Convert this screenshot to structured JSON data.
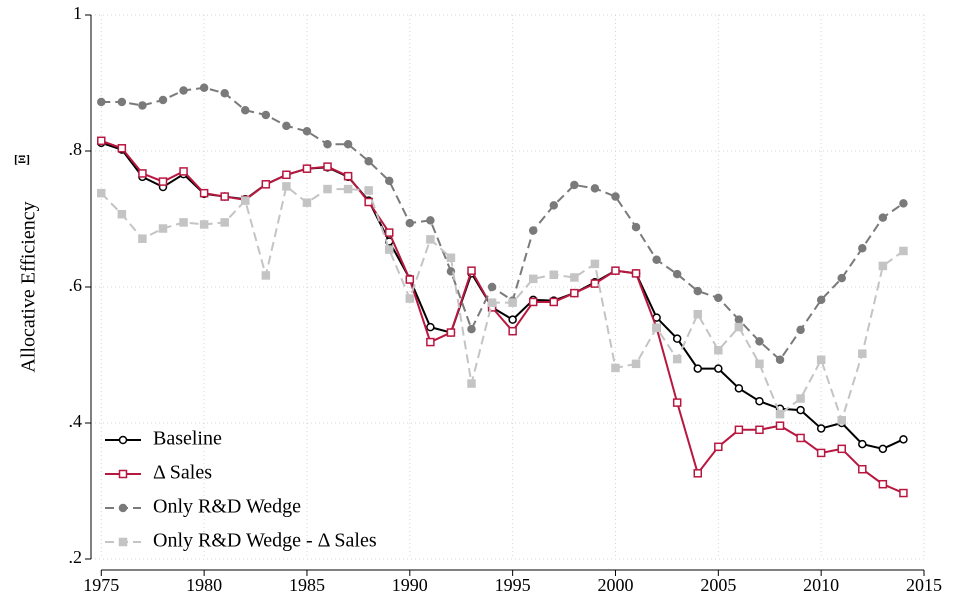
{
  "chart_data": {
    "type": "line",
    "ylabel": "Allocative Efficiency",
    "ylabel_symbol": "[Ξ]",
    "x": [
      1975,
      1976,
      1977,
      1978,
      1979,
      1980,
      1981,
      1982,
      1983,
      1984,
      1985,
      1986,
      1987,
      1988,
      1989,
      1990,
      1991,
      1992,
      1993,
      1994,
      1995,
      1996,
      1997,
      1998,
      1999,
      2000,
      2001,
      2002,
      2003,
      2004,
      2005,
      2006,
      2007,
      2008,
      2009,
      2010,
      2011,
      2012,
      2013,
      2014
    ],
    "series": [
      {
        "name": "Baseline",
        "color": "#000000",
        "marker": "hollow-circle",
        "dash": false,
        "values": [
          0.812,
          0.802,
          0.762,
          0.747,
          0.766,
          0.737,
          0.733,
          0.729,
          0.751,
          0.765,
          0.774,
          0.776,
          0.762,
          0.727,
          0.667,
          0.612,
          0.541,
          0.533,
          0.62,
          0.57,
          0.552,
          0.581,
          0.58,
          0.591,
          0.607,
          0.624,
          0.62,
          0.555,
          0.524,
          0.48,
          0.48,
          0.451,
          0.432,
          0.421,
          0.419,
          0.392,
          0.4,
          0.369,
          0.362,
          0.376
        ]
      },
      {
        "name": "Δ Sales",
        "color": "#b8173f",
        "marker": "hollow-square",
        "dash": false,
        "values": [
          0.815,
          0.804,
          0.767,
          0.755,
          0.77,
          0.738,
          0.733,
          0.728,
          0.751,
          0.765,
          0.774,
          0.777,
          0.763,
          0.725,
          0.68,
          0.611,
          0.519,
          0.533,
          0.624,
          0.57,
          0.535,
          0.578,
          0.578,
          0.591,
          0.605,
          0.624,
          0.62,
          0.54,
          0.43,
          0.326,
          0.365,
          0.39,
          0.39,
          0.396,
          0.378,
          0.356,
          0.362,
          0.332,
          0.31,
          0.297
        ]
      },
      {
        "name": "Only R&D Wedge",
        "color": "#7a7a7a",
        "marker": "filled-circle",
        "dash": true,
        "values": [
          0.872,
          0.872,
          0.867,
          0.875,
          0.889,
          0.893,
          0.885,
          0.86,
          0.853,
          0.837,
          0.829,
          0.81,
          0.81,
          0.785,
          0.756,
          0.694,
          0.698,
          0.623,
          0.538,
          0.6,
          0.58,
          0.683,
          0.72,
          0.75,
          0.745,
          0.733,
          0.688,
          0.64,
          0.619,
          0.594,
          0.584,
          0.552,
          0.52,
          0.493,
          0.537,
          0.581,
          0.613,
          0.657,
          0.702,
          0.723
        ]
      },
      {
        "name": "Only R&D Wedge - Δ Sales",
        "color": "#c4c4c4",
        "marker": "filled-square",
        "dash": true,
        "values": [
          0.738,
          0.707,
          0.671,
          0.686,
          0.695,
          0.692,
          0.695,
          0.727,
          0.617,
          0.748,
          0.724,
          0.744,
          0.744,
          0.742,
          0.655,
          0.583,
          0.67,
          0.643,
          0.458,
          0.577,
          0.577,
          0.612,
          0.618,
          0.614,
          0.634,
          0.481,
          0.487,
          0.54,
          0.494,
          0.56,
          0.507,
          0.541,
          0.487,
          0.413,
          0.436,
          0.493,
          0.404,
          0.502,
          0.631,
          0.653
        ]
      }
    ],
    "xlim": [
      1974.5,
      2015
    ],
    "xticks": [
      1975,
      1980,
      1985,
      1990,
      1995,
      2000,
      2005,
      2010,
      2015
    ],
    "ylim": [
      0.2,
      1
    ],
    "yticks": [
      {
        "value": 0.2,
        "label": ".2"
      },
      {
        "value": 0.4,
        "label": ".4"
      },
      {
        "value": 0.6,
        "label": ".6"
      },
      {
        "value": 0.8,
        "label": ".8"
      },
      1
    ],
    "grid": true,
    "legend": "lower left"
  }
}
